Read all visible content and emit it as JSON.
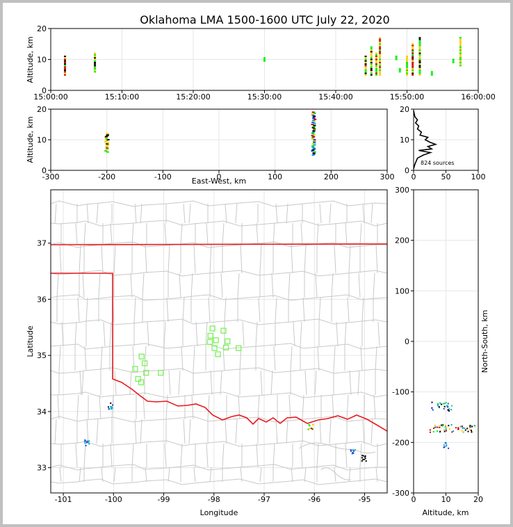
{
  "title": "Oklahoma LMA 1500-1600 UTC July 22, 2020",
  "chart_data": [
    {
      "id": "time-height",
      "type": "scatter",
      "ylabel": "Altitude, km",
      "xlim": [
        "15:00:00",
        "16:00:00"
      ],
      "x_ticks": [
        "15:00:00",
        "15:10:00",
        "15:20:00",
        "15:30:00",
        "15:40:00",
        "15:50:00",
        "16:00:00"
      ],
      "ylim": [
        0,
        20
      ],
      "y_ticks": [
        0,
        10,
        20
      ],
      "columns": [
        {
          "t_min": 2.0,
          "alt_min": 5,
          "alt_max": 11,
          "colors": [
            "#00ee00",
            "#ffcc00",
            "#cc0000",
            "#000000"
          ]
        },
        {
          "t_min": 6.2,
          "alt_min": 6,
          "alt_max": 12,
          "colors": [
            "#00ee00",
            "#ffcc00",
            "#000000"
          ]
        },
        {
          "t_min": 30.0,
          "alt_min": 9.5,
          "alt_max": 10.5,
          "colors": [
            "#00ee00"
          ]
        },
        {
          "t_min": 44.2,
          "alt_min": 5,
          "alt_max": 11,
          "colors": [
            "#00ee00",
            "#ffcc00",
            "#cc0000",
            "#000000"
          ]
        },
        {
          "t_min": 45.0,
          "alt_min": 5,
          "alt_max": 14,
          "colors": [
            "#00ee00",
            "#ffcc00",
            "#000000"
          ]
        },
        {
          "t_min": 45.7,
          "alt_min": 5,
          "alt_max": 12,
          "colors": [
            "#00ee00",
            "#ffcc00",
            "#cc0000"
          ]
        },
        {
          "t_min": 46.2,
          "alt_min": 5,
          "alt_max": 17,
          "colors": [
            "#00ee00",
            "#ffcc00",
            "#cc0000"
          ]
        },
        {
          "t_min": 48.5,
          "alt_min": 10,
          "alt_max": 11,
          "colors": [
            "#00ee00"
          ]
        },
        {
          "t_min": 49.0,
          "alt_min": 6,
          "alt_max": 7,
          "colors": [
            "#00ee00"
          ]
        },
        {
          "t_min": 50.0,
          "alt_min": 5,
          "alt_max": 11,
          "colors": [
            "#00ee00",
            "#ffcc00"
          ]
        },
        {
          "t_min": 50.8,
          "alt_min": 5,
          "alt_max": 15,
          "colors": [
            "#00ee00",
            "#ffcc00",
            "#cc0000",
            "#000000"
          ]
        },
        {
          "t_min": 51.8,
          "alt_min": 5,
          "alt_max": 17,
          "colors": [
            "#00ee00",
            "#ffcc00",
            "#000000"
          ]
        },
        {
          "t_min": 53.5,
          "alt_min": 5,
          "alt_max": 6,
          "colors": [
            "#00ee00"
          ]
        },
        {
          "t_min": 56.5,
          "alt_min": 9,
          "alt_max": 10,
          "colors": [
            "#00ee00"
          ]
        },
        {
          "t_min": 57.5,
          "alt_min": 8,
          "alt_max": 17,
          "colors": [
            "#00ee00",
            "#ffcc00"
          ]
        }
      ]
    },
    {
      "id": "ew-altitude",
      "type": "scatter",
      "xlabel": "East-West, km",
      "ylabel": "Altitude, km",
      "xlim": [
        -300,
        300
      ],
      "x_ticks": [
        -300,
        -200,
        -100,
        0,
        100,
        200,
        300
      ],
      "ylim": [
        0,
        20
      ],
      "y_ticks": [
        0,
        10,
        20
      ],
      "columns": [
        {
          "x_km": -200,
          "alt_min": 6,
          "alt_max": 12,
          "colors": [
            "#00ee00",
            "#ffcc00",
            "#1a3fd9",
            "#000000"
          ]
        },
        {
          "x_km": 169,
          "alt_min": 5,
          "alt_max": 19,
          "colors": [
            "#00ee00",
            "#ffcc00",
            "#cc0000",
            "#000000",
            "#1a3fd9",
            "#00aacc"
          ]
        }
      ]
    },
    {
      "id": "altitude-histogram",
      "type": "line",
      "xlim": [
        0,
        100
      ],
      "x_ticks": [
        0,
        50,
        100
      ],
      "ylim": [
        0,
        20
      ],
      "y_ticks": [
        0,
        10,
        20
      ],
      "annotation": "824 sources",
      "profile": [
        {
          "alt": 0.5,
          "count": 0
        },
        {
          "alt": 2,
          "count": 2
        },
        {
          "alt": 4,
          "count": 6
        },
        {
          "alt": 5,
          "count": 15
        },
        {
          "alt": 5.8,
          "count": 26
        },
        {
          "alt": 6.5,
          "count": 8
        },
        {
          "alt": 7,
          "count": 28
        },
        {
          "alt": 7.8,
          "count": 22
        },
        {
          "alt": 8.5,
          "count": 34
        },
        {
          "alt": 9.2,
          "count": 25
        },
        {
          "alt": 10,
          "count": 18
        },
        {
          "alt": 10.8,
          "count": 22
        },
        {
          "alt": 11.5,
          "count": 10
        },
        {
          "alt": 12.5,
          "count": 12
        },
        {
          "alt": 13.5,
          "count": 6
        },
        {
          "alt": 14.5,
          "count": 8
        },
        {
          "alt": 15.5,
          "count": 3
        },
        {
          "alt": 16.5,
          "count": 6
        },
        {
          "alt": 17.5,
          "count": 2
        },
        {
          "alt": 18.5,
          "count": 1
        },
        {
          "alt": 19.5,
          "count": 0
        }
      ]
    },
    {
      "id": "plan-view-map",
      "type": "scatter",
      "xlabel": "Longitude",
      "ylabel": "Latitude",
      "xlim": [
        -101.25,
        -94.55
      ],
      "x_ticks": [
        -101,
        -100,
        -99,
        -98,
        -97,
        -96,
        -95
      ],
      "ylim": [
        32.55,
        37.95
      ],
      "y_ticks": [
        33,
        34,
        35,
        36,
        37
      ],
      "stations": [
        [
          -98.03,
          35.48
        ],
        [
          -97.81,
          35.44
        ],
        [
          -98.07,
          35.35
        ],
        [
          -97.96,
          35.27
        ],
        [
          -98.08,
          35.24
        ],
        [
          -97.73,
          35.25
        ],
        [
          -97.76,
          35.14
        ],
        [
          -97.51,
          35.13
        ],
        [
          -97.99,
          35.13
        ],
        [
          -97.92,
          35.02
        ],
        [
          -99.44,
          34.98
        ],
        [
          -99.38,
          34.86
        ],
        [
          -99.57,
          34.76
        ],
        [
          -99.35,
          34.69
        ],
        [
          -99.06,
          34.69
        ],
        [
          -99.51,
          34.58
        ],
        [
          -99.45,
          34.52
        ]
      ],
      "sources": [
        {
          "lon": -100.05,
          "lat": 34.1,
          "colors": [
            "#1a3fd9",
            "#000000",
            "#00aacc"
          ]
        },
        {
          "lon": -96.07,
          "lat": 33.72,
          "colors": [
            "#00ee00",
            "#ffcc00",
            "#cc0000",
            "#000000"
          ]
        },
        {
          "lon": -100.52,
          "lat": 33.44,
          "colors": [
            "#1a3fd9",
            "#00aacc"
          ]
        },
        {
          "lon": -95.23,
          "lat": 33.3,
          "colors": [
            "#1a3fd9",
            "#00aacc"
          ]
        },
        {
          "lon": -95.02,
          "lat": 33.17,
          "colors": [
            "#000000"
          ]
        }
      ]
    },
    {
      "id": "altitude-ns",
      "type": "scatter",
      "xlabel": "Altitude, km",
      "ylabel": "North-South, km",
      "xlim": [
        0,
        20
      ],
      "x_ticks": [
        0,
        10,
        20
      ],
      "ylim": [
        -300,
        300
      ],
      "y_ticks": [
        -300,
        -200,
        -100,
        0,
        100,
        200,
        300
      ],
      "clusters": [
        {
          "alt_min": 5.5,
          "alt_max": 12,
          "ns_min": -138,
          "ns_max": -120,
          "colors": [
            "#00aacc",
            "#1a3fd9",
            "#000000",
            "#00ee00"
          ]
        },
        {
          "alt_min": 5,
          "alt_max": 19,
          "ns_min": -180,
          "ns_max": -165,
          "colors": [
            "#00ee00",
            "#ffcc00",
            "#cc0000",
            "#000000",
            "#00aacc"
          ]
        },
        {
          "alt_min": 9,
          "alt_max": 11,
          "ns_min": -215,
          "ns_max": -195,
          "colors": [
            "#00aacc",
            "#1a3fd9"
          ]
        }
      ]
    }
  ]
}
